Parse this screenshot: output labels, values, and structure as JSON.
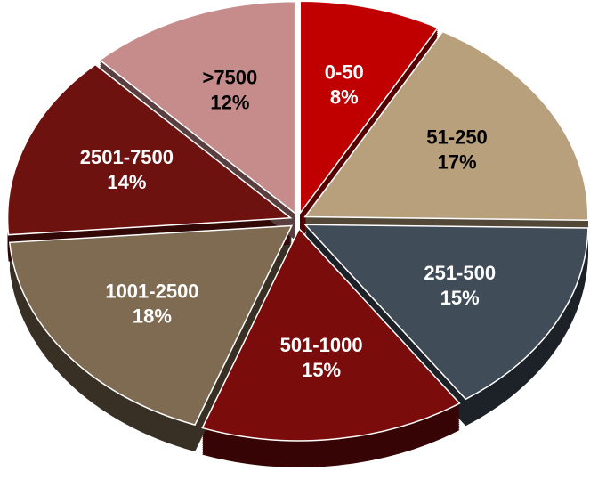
{
  "chart_data": {
    "type": "pie",
    "categories": [
      "0-50",
      "51-250",
      "251-500",
      "501-1000",
      "1001-2500",
      "2501-7500",
      ">7500"
    ],
    "values": [
      8,
      17,
      15,
      15,
      18,
      14,
      12
    ],
    "value_labels": [
      "8%",
      "17%",
      "15%",
      "15%",
      "18%",
      "14%",
      "12%"
    ],
    "colors": [
      "#c00000",
      "#b8a07c",
      "#414c59",
      "#7a0c0c",
      "#7e6b52",
      "#6e1210",
      "#c68c8c"
    ]
  }
}
